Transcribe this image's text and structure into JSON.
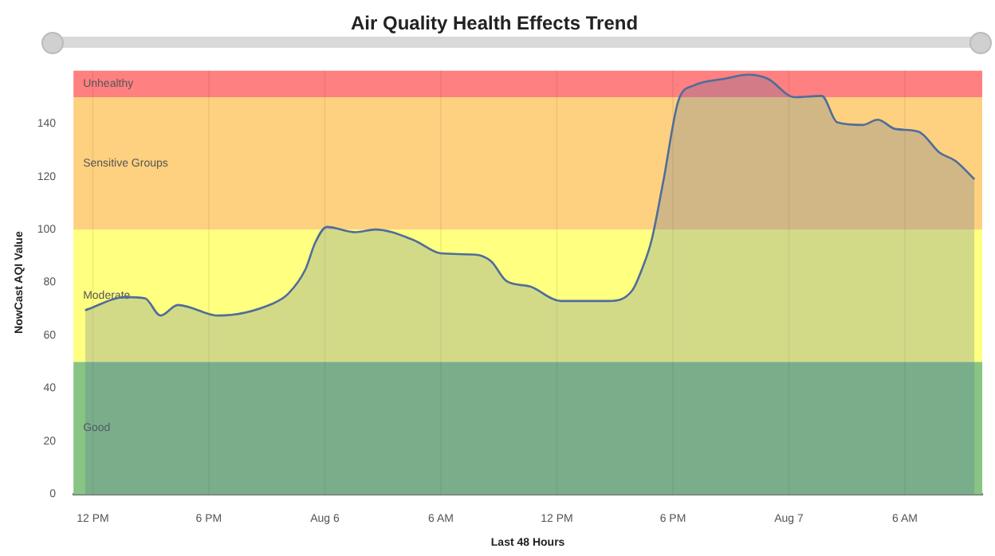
{
  "chart_data": {
    "type": "area",
    "title": "Air Quality Health Effects Trend",
    "xlabel": "Last 48 Hours",
    "ylabel": "NowCast AQI Value",
    "x": [
      "--08-05T11:36",
      "--08-05T13:42",
      "--08-05T14:42",
      "--08-05T15:30",
      "--08-05T16:24",
      "--08-05T18:30",
      "--08-05T21:18",
      "--08-05T22:06",
      "--08-05T23:00",
      "--08-05T23:30",
      "--08-06T00:06",
      "--08-06T01:36",
      "--08-06T02:36",
      "--08-06T04:36",
      "--08-06T06:00",
      "--08-06T07:48",
      "--08-06T08:36",
      "--08-06T09:24",
      "--08-06T10:36",
      "--08-06T12:12",
      "--08-06T14:42",
      "--08-06T15:54",
      "--08-06T16:24",
      "--08-06T16:54",
      "--08-06T17:30",
      "--08-06T18:18",
      "--08-06T19:06",
      "--08-06T20:42",
      "--08-06T21:54",
      "--08-06T22:54",
      "--08-07T00:18",
      "--08-07T01:42",
      "--08-07T02:30",
      "--08-07T03:48",
      "--08-07T04:36",
      "--08-07T05:30",
      "--08-07T06:42",
      "--08-07T07:48",
      "--08-07T08:36",
      "--08-07T09:36"
    ],
    "series": [
      {
        "color": "#4f6d9a",
        "values": [
          69.5,
          74.5,
          74,
          67.5,
          71.5,
          67.5,
          72,
          75.7,
          85,
          95,
          101,
          99,
          100,
          96,
          91,
          90.5,
          88,
          80.5,
          78.5,
          73,
          73,
          77,
          85,
          96,
          118,
          149,
          154.5,
          157,
          158.5,
          157,
          150,
          150.5,
          140.5,
          139.5,
          141.5,
          138,
          137,
          129,
          126,
          119
        ]
      }
    ],
    "xlim": [
      "--08-05T11:00",
      "--08-07T10:00"
    ],
    "xticks": [
      {
        "value": "--08-05T12:00",
        "label": "12 PM"
      },
      {
        "value": "--08-05T18:00",
        "label": "6 PM"
      },
      {
        "value": "--08-06T00:00",
        "label": "Aug 6"
      },
      {
        "value": "--08-06T06:00",
        "label": "6 AM"
      },
      {
        "value": "--08-06T12:00",
        "label": "12 PM"
      },
      {
        "value": "--08-06T18:00",
        "label": "6 PM"
      },
      {
        "value": "--08-07T00:00",
        "label": "Aug 7"
      },
      {
        "value": "--08-07T06:00",
        "label": "6 AM"
      }
    ],
    "ylim": [
      0,
      160
    ],
    "yticks": [
      0,
      20,
      40,
      60,
      80,
      100,
      120,
      140
    ],
    "bands": [
      {
        "axis": "y",
        "from": 0,
        "to": 50,
        "label": "Good",
        "color": "#88c484"
      },
      {
        "axis": "y",
        "from": 50,
        "to": 100,
        "label": "Moderate",
        "color": "#ffff80"
      },
      {
        "axis": "y",
        "from": 100,
        "to": 150,
        "label": "Sensitive Groups",
        "color": "#fdd17f"
      },
      {
        "axis": "y",
        "from": 150,
        "to": 160,
        "label": "Unhealthy",
        "color": "#ff8080"
      }
    ],
    "grid": "x",
    "legend": false,
    "marker": "none"
  }
}
